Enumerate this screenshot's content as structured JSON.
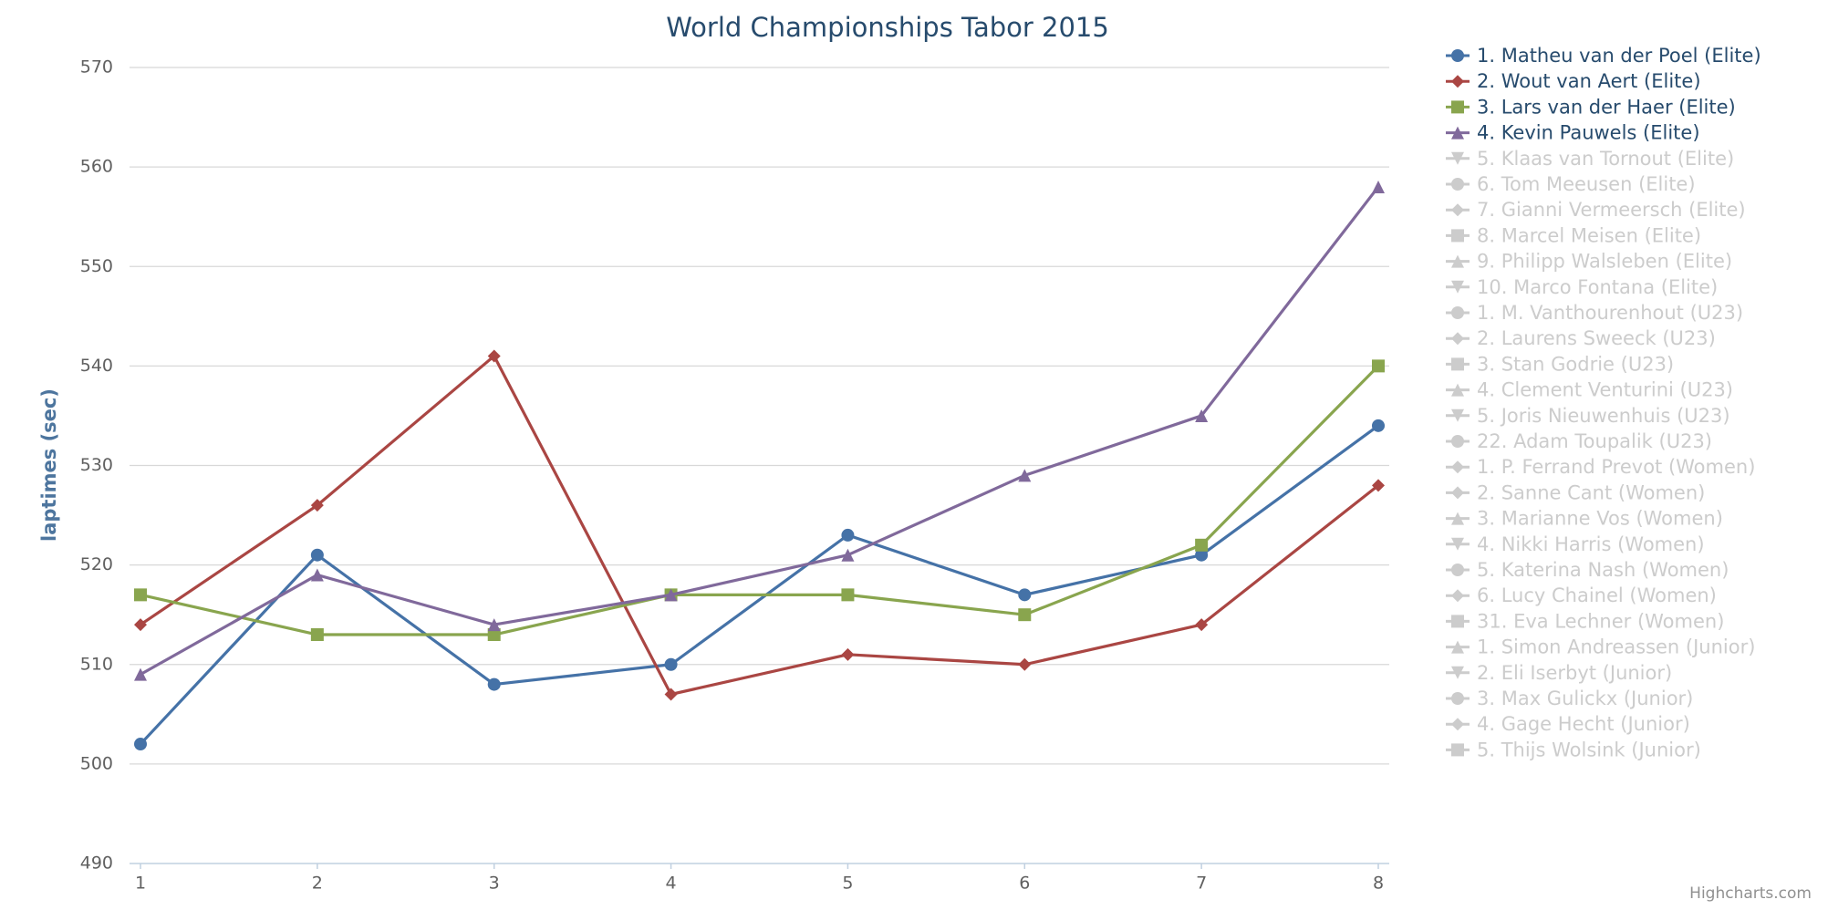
{
  "chart_data": {
    "type": "line",
    "title": "World Championships Tabor 2015",
    "y_label": "laptimes (sec)",
    "credits": "Highcharts.com",
    "x": [
      1,
      2,
      3,
      4,
      5,
      6,
      7,
      8
    ],
    "xlim": [
      1,
      8
    ],
    "xticks": [
      1,
      2,
      3,
      4,
      5,
      6,
      7,
      8
    ],
    "ylim": [
      490,
      570
    ],
    "yticks": [
      490,
      500,
      510,
      520,
      530,
      540,
      550,
      560,
      570
    ],
    "grid": true,
    "legend": "right",
    "hidden_color": "#cccccc",
    "series": [
      {
        "name": "1. Matheu van der Poel (Elite)",
        "color": "#4572A7",
        "marker": "circle",
        "visible": true,
        "values": [
          502,
          521,
          508,
          510,
          523,
          517,
          521,
          534
        ]
      },
      {
        "name": "2. Wout van Aert (Elite)",
        "color": "#AA4643",
        "marker": "diamond",
        "visible": true,
        "values": [
          514,
          526,
          541,
          507,
          511,
          510,
          514,
          528
        ]
      },
      {
        "name": "3. Lars van der Haer (Elite)",
        "color": "#89A54E",
        "marker": "square",
        "visible": true,
        "values": [
          517,
          513,
          513,
          517,
          517,
          515,
          522,
          540
        ]
      },
      {
        "name": "4. Kevin Pauwels (Elite)",
        "color": "#80699B",
        "marker": "triangle",
        "visible": true,
        "values": [
          509,
          519,
          514,
          517,
          521,
          529,
          535,
          558
        ]
      },
      {
        "name": "5. Klaas van Tornout (Elite)",
        "marker": "triangle-down",
        "visible": false
      },
      {
        "name": "6. Tom Meeusen (Elite)",
        "marker": "circle",
        "visible": false
      },
      {
        "name": "7. Gianni Vermeersch (Elite)",
        "marker": "diamond",
        "visible": false
      },
      {
        "name": "8. Marcel Meisen (Elite)",
        "marker": "square",
        "visible": false
      },
      {
        "name": "9. Philipp Walsleben (Elite)",
        "marker": "triangle",
        "visible": false
      },
      {
        "name": "10. Marco Fontana (Elite)",
        "marker": "triangle-down",
        "visible": false
      },
      {
        "name": "1. M. Vanthourenhout (U23)",
        "marker": "circle",
        "visible": false
      },
      {
        "name": "2. Laurens Sweeck (U23)",
        "marker": "diamond",
        "visible": false
      },
      {
        "name": "3. Stan Godrie (U23)",
        "marker": "square",
        "visible": false
      },
      {
        "name": "4. Clement Venturini (U23)",
        "marker": "triangle",
        "visible": false
      },
      {
        "name": "5. Joris Nieuwenhuis (U23)",
        "marker": "triangle-down",
        "visible": false
      },
      {
        "name": "22. Adam Toupalik (U23)",
        "marker": "circle",
        "visible": false
      },
      {
        "name": "1. P. Ferrand Prevot (Women)",
        "marker": "diamond",
        "visible": false
      },
      {
        "name": "2. Sanne Cant (Women)",
        "marker": "diamond",
        "visible": false
      },
      {
        "name": "3. Marianne Vos (Women)",
        "marker": "triangle",
        "visible": false
      },
      {
        "name": "4. Nikki Harris (Women)",
        "marker": "triangle-down",
        "visible": false
      },
      {
        "name": "5. Katerina Nash (Women)",
        "marker": "circle",
        "visible": false
      },
      {
        "name": "6. Lucy Chainel (Women)",
        "marker": "diamond",
        "visible": false
      },
      {
        "name": "31. Eva Lechner (Women)",
        "marker": "square",
        "visible": false
      },
      {
        "name": "1. Simon Andreassen (Junior)",
        "marker": "triangle",
        "visible": false
      },
      {
        "name": "2. Eli Iserbyt (Junior)",
        "marker": "triangle-down",
        "visible": false
      },
      {
        "name": "3. Max Gulickx (Junior)",
        "marker": "circle",
        "visible": false
      },
      {
        "name": "4. Gage Hecht (Junior)",
        "marker": "diamond",
        "visible": false
      },
      {
        "name": "5. Thijs Wolsink (Junior)",
        "marker": "square",
        "visible": false
      }
    ]
  }
}
